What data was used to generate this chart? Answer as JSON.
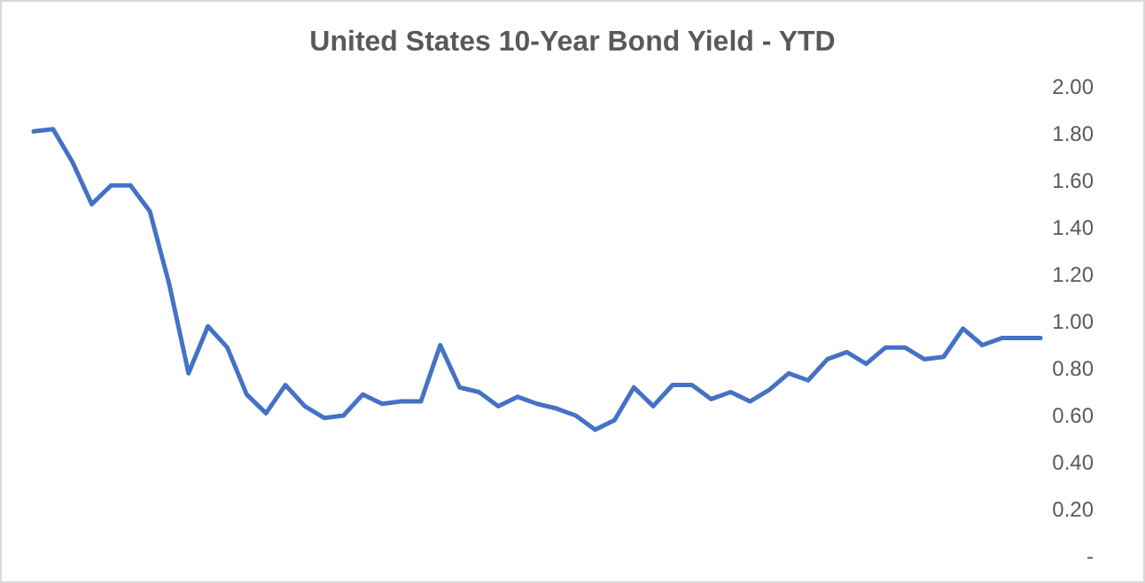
{
  "chart_data": {
    "type": "line",
    "title": "United States 10-Year Bond Yield - YTD",
    "categories": [
      null,
      null,
      null,
      null,
      null,
      null,
      null,
      null,
      null,
      null,
      null,
      null,
      null,
      null,
      null,
      null,
      null,
      null,
      null,
      null,
      null,
      null,
      null,
      null,
      null,
      null,
      null,
      null,
      null,
      null,
      null,
      null,
      null,
      null,
      null,
      null,
      null,
      null,
      null,
      null,
      null,
      null,
      null,
      null,
      null,
      null,
      null,
      null,
      null,
      null,
      null,
      null,
      null
    ],
    "series": [
      {
        "color": "#4472c4",
        "values": [
          1.81,
          1.82,
          1.68,
          1.5,
          1.58,
          1.58,
          1.47,
          1.16,
          0.78,
          0.98,
          0.89,
          0.69,
          0.61,
          0.73,
          0.64,
          0.59,
          0.6,
          0.69,
          0.65,
          0.66,
          0.66,
          0.9,
          0.72,
          0.7,
          0.64,
          0.68,
          0.65,
          0.63,
          0.6,
          0.54,
          0.58,
          0.72,
          0.64,
          0.73,
          0.73,
          0.67,
          0.7,
          0.66,
          0.71,
          0.78,
          0.75,
          0.84,
          0.87,
          0.82,
          0.89,
          0.89,
          0.84,
          0.85,
          0.97,
          0.9,
          0.93,
          0.93,
          0.93
        ]
      }
    ],
    "ylim": [
      0,
      2
    ],
    "yticks": [
      {
        "value": 0,
        "label": "-"
      },
      {
        "value": 0.2,
        "label": "0.20"
      },
      {
        "value": 0.4,
        "label": "0.40"
      },
      {
        "value": 0.6,
        "label": "0.60"
      },
      {
        "value": 0.8,
        "label": "0.80"
      },
      {
        "value": 1,
        "label": "1.00"
      },
      {
        "value": 1.2,
        "label": "1.20"
      },
      {
        "value": 1.4,
        "label": "1.40"
      },
      {
        "value": 1.6,
        "label": "1.60"
      },
      {
        "value": 1.8,
        "label": "1.80"
      },
      {
        "value": 2,
        "label": "2.00"
      }
    ],
    "grid": false,
    "marker": "none",
    "line_style": "solid"
  }
}
